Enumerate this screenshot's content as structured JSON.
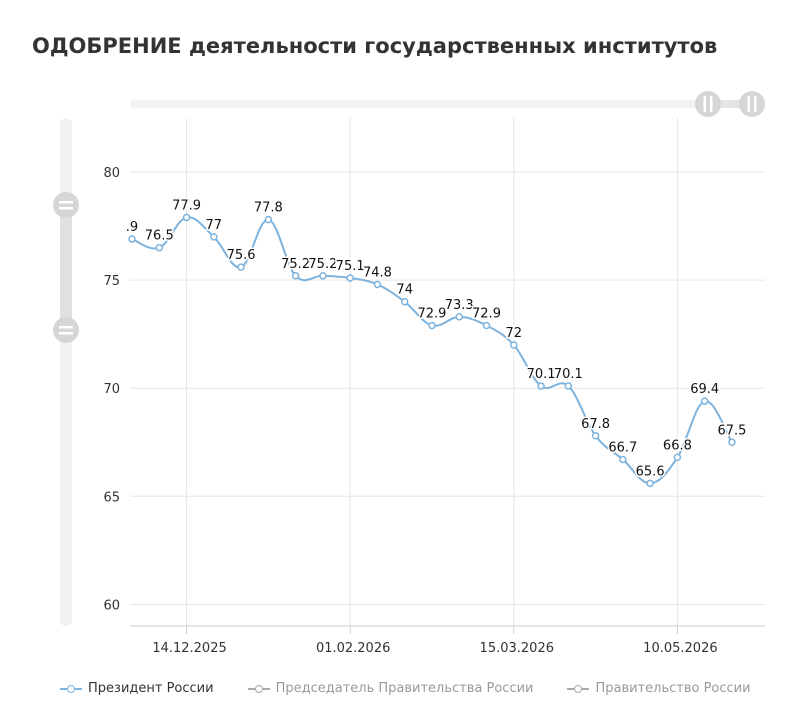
{
  "title": "ОДОБРЕНИЕ деятельности государственных институтов",
  "chart_data": {
    "type": "line",
    "y_ticks": [
      60,
      65,
      70,
      75,
      80
    ],
    "ylim": [
      59,
      82.5
    ],
    "x_tick_labels": [
      "14.12.2025",
      "01.02.2026",
      "15.03.2026",
      "10.05.2026"
    ],
    "x_tick_indices": [
      2,
      8,
      14,
      20
    ],
    "series": [
      {
        "name": "Президент России",
        "color": "#7eb3dd",
        "values": [
          76.9,
          76.5,
          77.9,
          77,
          75.6,
          77.8,
          75.2,
          75.2,
          75.1,
          74.8,
          74,
          72.9,
          73.3,
          72.9,
          72,
          70.1,
          70.1,
          67.8,
          66.7,
          65.6,
          66.8,
          69.4,
          67.5
        ],
        "labels": [
          ".9",
          "76.5",
          "77.9",
          "77",
          "75.6",
          "77.8",
          "75.2",
          "75.2",
          "75.1",
          "74.8",
          "74",
          "72.9",
          "73.3",
          "72.9",
          "72",
          "70.1",
          "70.1",
          "67.8",
          "66.7",
          "65.6",
          "66.8",
          "69.4",
          "67.5"
        ]
      }
    ],
    "grid": true,
    "legend_position": "bottom-left"
  },
  "legend": [
    {
      "label": "Президент России",
      "color": "#7eb3dd",
      "active": true
    },
    {
      "label": "Председатель Правительства России",
      "color": "#aaaaaa",
      "active": false
    },
    {
      "label": "Правительство России",
      "color": "#aaaaaa",
      "active": false
    }
  ],
  "navigator": {
    "horizontal_handle_icon": "pause-handle-icon",
    "vertical_handle_icon": "equals-handle-icon"
  }
}
